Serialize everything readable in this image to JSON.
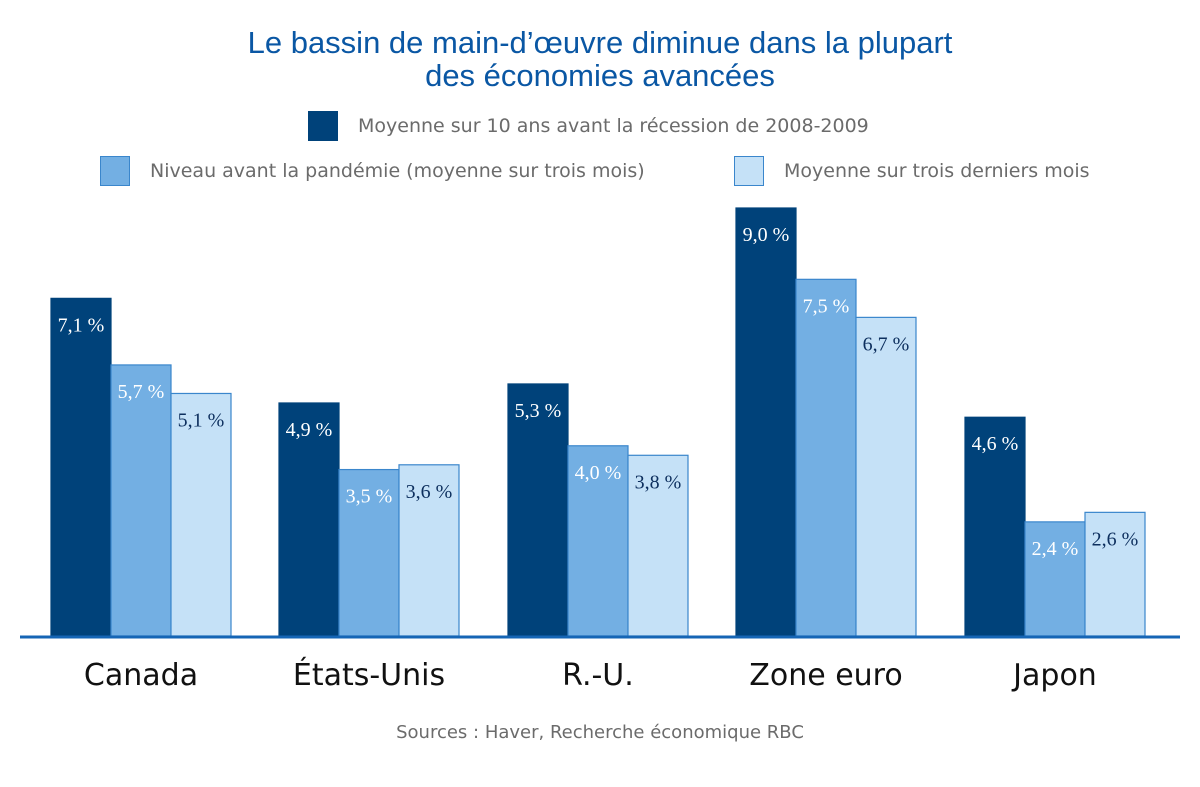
{
  "title_lines": [
    "Le bassin de main-d’œuvre diminue dans la plupart",
    "des économies avancées"
  ],
  "source": "Sources : Haver, Recherche économique RBC",
  "chart_data": {
    "type": "bar",
    "categories": [
      "Canada",
      "États-Unis",
      "R.-U.",
      "Zone euro",
      "Japon"
    ],
    "series": [
      {
        "name": "Moyenne sur 10 ans avant la récession de 2008-2009",
        "values": [
          7.1,
          4.9,
          5.3,
          9.0,
          4.6
        ],
        "labels": [
          "7,1 %",
          "4,9 %",
          "5,3 %",
          "9,0 %",
          "4,6 %"
        ],
        "color": "#00427a",
        "label_color": "#ffffff"
      },
      {
        "name": "Niveau avant la pandémie (moyenne sur trois mois)",
        "values": [
          5.7,
          3.5,
          4.0,
          7.5,
          2.4
        ],
        "labels": [
          "5,7 %",
          "3,5 %",
          "4,0 %",
          "7,5 %",
          "2,4 %"
        ],
        "color": "#73afe3",
        "label_color": "#ffffff"
      },
      {
        "name": "Moyenne sur trois derniers mois",
        "values": [
          5.1,
          3.6,
          3.8,
          6.7,
          2.6
        ],
        "labels": [
          "5,1 %",
          "3,6 %",
          "3,8 %",
          "6,7 %",
          "2,6 %"
        ],
        "color": "#c5e1f7",
        "label_color": "#0d2f5e"
      }
    ],
    "ylim": [
      0,
      9.0
    ],
    "grid": false,
    "legend_position": "top"
  }
}
